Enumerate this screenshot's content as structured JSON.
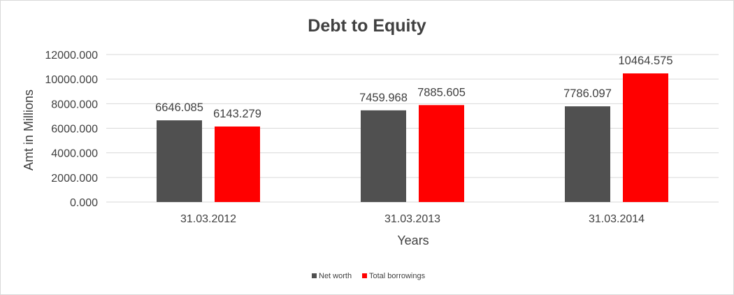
{
  "chart_data": {
    "type": "bar",
    "title": "Debt to Equity",
    "xlabel": "Years",
    "ylabel": "Amt in Millions",
    "categories": [
      "31.03.2012",
      "31.03.2013",
      "31.03.2014"
    ],
    "series": [
      {
        "name": "Net worth",
        "color": "#505050",
        "values": [
          6646.085,
          7459.968,
          7786.097
        ],
        "labels": [
          "6646.085",
          "7459.968",
          "7786.097"
        ]
      },
      {
        "name": "Total borrowings",
        "color": "#ff0000",
        "values": [
          6143.279,
          7885.605,
          10464.575
        ],
        "labels": [
          "6143.279",
          "7885.605",
          "10464.575"
        ]
      }
    ],
    "ylim": [
      0,
      12000
    ],
    "yticks": [
      "0.000",
      "2000.000",
      "4000.000",
      "6000.000",
      "8000.000",
      "10000.000",
      "12000.000"
    ],
    "grid": true,
    "legend": "bottom"
  }
}
